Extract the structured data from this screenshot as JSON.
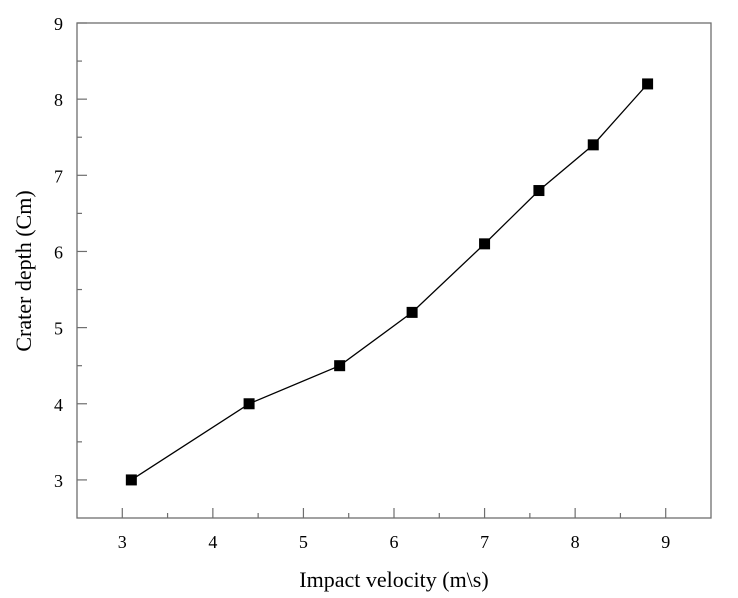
{
  "chart_data": {
    "type": "line",
    "title": "",
    "xlabel": "Impact velocity (m\\s)",
    "ylabel": "Crater depth (Cm)",
    "xlim": [
      2.5,
      9.5
    ],
    "ylim": [
      2.5,
      9
    ],
    "xticks": [
      3,
      4,
      5,
      6,
      7,
      8,
      9
    ],
    "yticks": [
      3,
      4,
      5,
      6,
      7,
      8,
      9
    ],
    "xtick_labels": [
      "3",
      "4",
      "5",
      "6",
      "7",
      "8",
      "9"
    ],
    "ytick_labels": [
      "3",
      "4",
      "5",
      "6",
      "7",
      "8",
      "9"
    ],
    "grid": false,
    "legend": "none",
    "series": [
      {
        "name": "Crater depth",
        "marker": "square",
        "color": "#000000",
        "x": [
          3.1,
          4.4,
          5.4,
          6.2,
          7.0,
          7.6,
          8.2,
          8.8
        ],
        "y": [
          3.0,
          4.0,
          4.5,
          5.2,
          6.1,
          6.8,
          7.4,
          8.2
        ]
      }
    ]
  }
}
